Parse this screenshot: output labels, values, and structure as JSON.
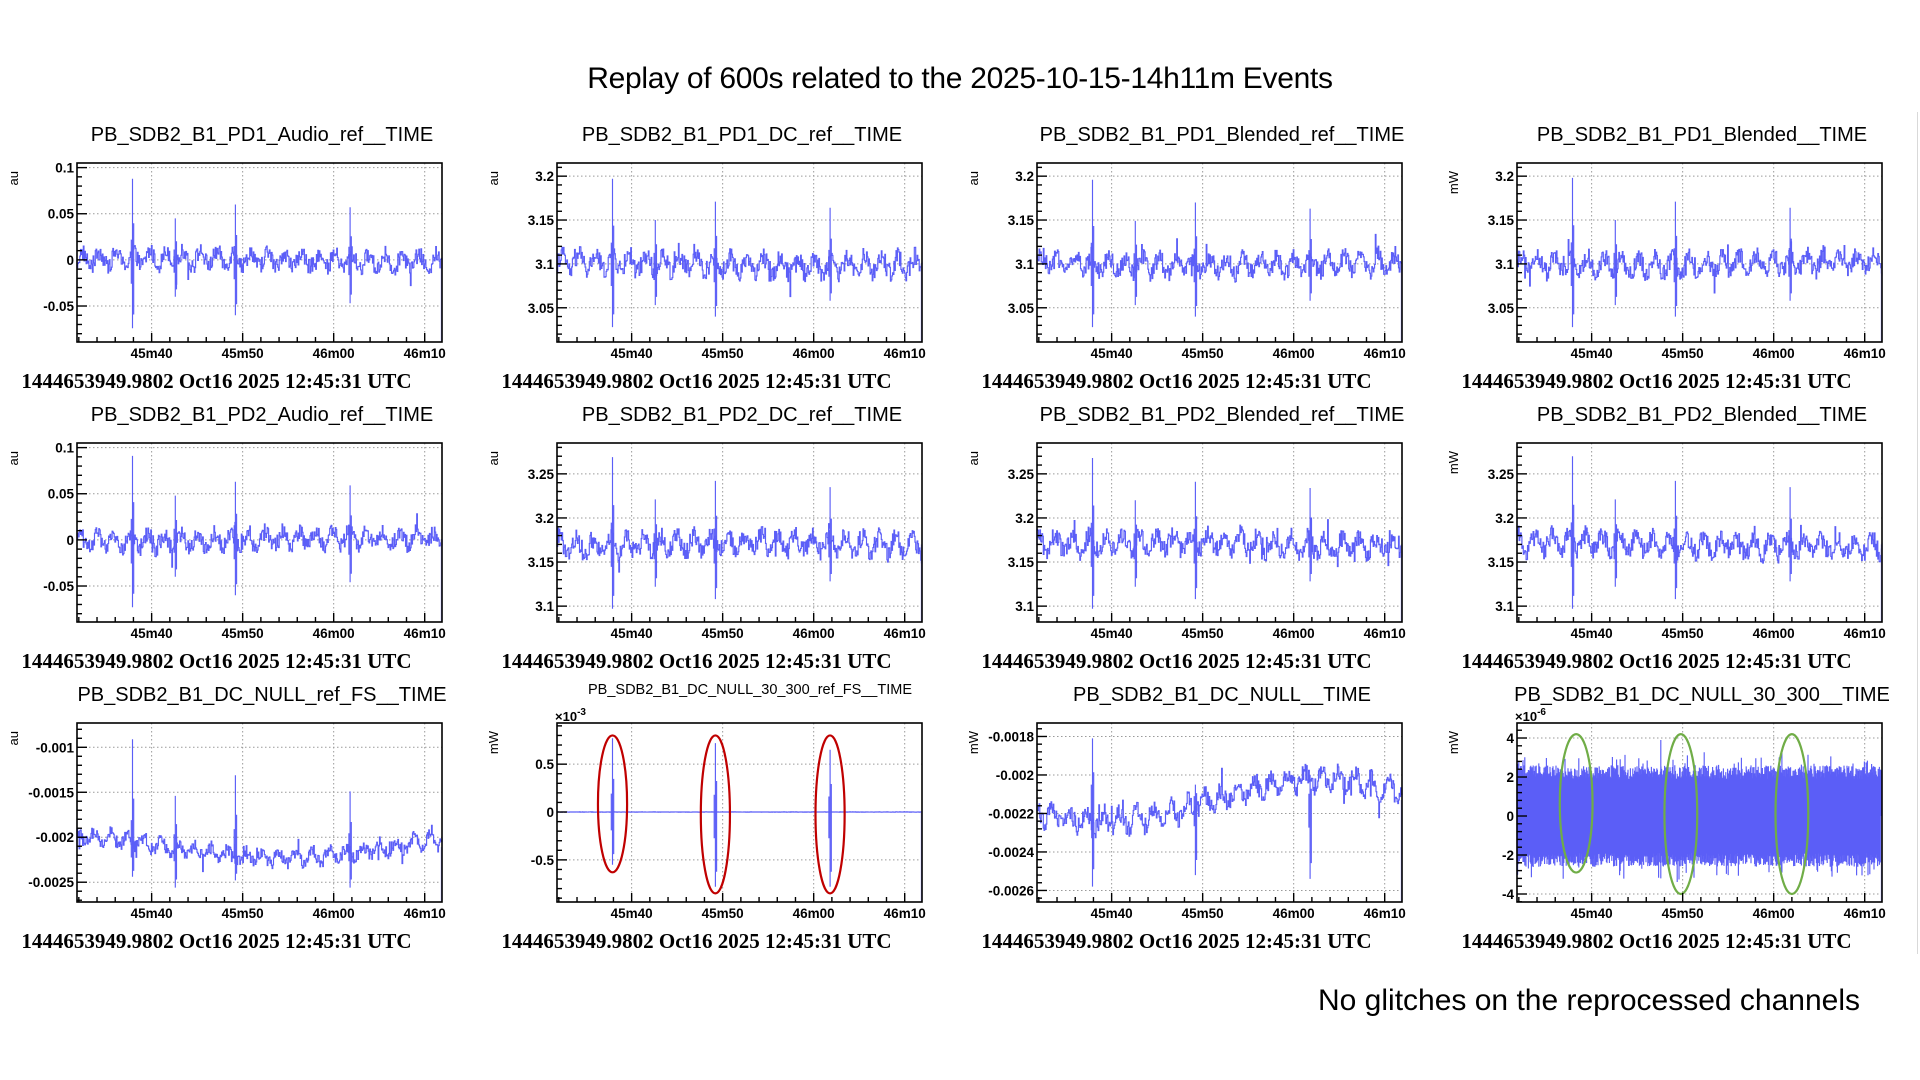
{
  "header": {
    "title": "Replay of 600s related to the 2025-10-15-14h11m Events"
  },
  "footer": {
    "note": "No glitches on the reprocessed channels"
  },
  "colors": {
    "trace": "#5b5ef7",
    "highlight_red": "#c00000",
    "highlight_green": "#70ad47",
    "frame": "#000000",
    "grid": "#9a9a9a"
  },
  "chart_data": [
    {
      "type": "line",
      "title": "PB_SDB2_B1_PD1_Audio_ref__TIME",
      "ylabel": "au",
      "xlabel": "",
      "footer": "1444653949.9802 Oct16 2025 12:45:31 UTC",
      "x_ticks": [
        "45m40",
        "45m50",
        "46m00",
        "46m10"
      ],
      "x_tick_values_s": [
        2740,
        2750,
        2760,
        2770
      ],
      "xlim_s": [
        2731.8,
        2771.9
      ],
      "y_ticks": [
        "0.1",
        "0.05",
        "0",
        "-0.05"
      ],
      "y_tick_values": [
        0.1,
        0.05,
        0,
        -0.05
      ],
      "ylim": [
        -0.089,
        0.105
      ],
      "multiplier": "",
      "grid": true,
      "series": [
        {
          "name": "signal",
          "baseline": 0,
          "noise": 0.011,
          "drift": 0.002,
          "glitches": [
            {
              "t": 2737.9,
              "max": 0.088,
              "min": -0.074
            },
            {
              "t": 2742.6,
              "max": 0.045,
              "min": -0.04
            },
            {
              "t": 2749.2,
              "max": 0.06,
              "min": -0.06
            },
            {
              "t": 2761.8,
              "max": 0.057,
              "min": -0.047
            }
          ]
        }
      ],
      "highlights": []
    },
    {
      "type": "line",
      "title": "PB_SDB2_B1_PD1_DC_ref__TIME",
      "ylabel": "au",
      "xlabel": "",
      "footer": "1444653949.9802 Oct16 2025 12:45:31 UTC",
      "x_ticks": [
        "45m40",
        "45m50",
        "46m00",
        "46m10"
      ],
      "x_tick_values_s": [
        2740,
        2750,
        2760,
        2770
      ],
      "xlim_s": [
        2731.8,
        2771.9
      ],
      "y_ticks": [
        "3.2",
        "3.15",
        "3.1",
        "3.05"
      ],
      "y_tick_values": [
        3.2,
        3.15,
        3.1,
        3.05
      ],
      "ylim": [
        3.011,
        3.215
      ],
      "multiplier": "",
      "grid": true,
      "series": [
        {
          "name": "signal",
          "baseline": 3.1,
          "noise": 0.013,
          "drift": 0.002,
          "glitches": [
            {
              "t": 2737.9,
              "max": 3.197,
              "min": 3.028
            },
            {
              "t": 2742.6,
              "max": 3.15,
              "min": 3.053
            },
            {
              "t": 2749.2,
              "max": 3.171,
              "min": 3.04
            },
            {
              "t": 2761.8,
              "max": 3.164,
              "min": 3.058
            }
          ]
        }
      ],
      "highlights": []
    },
    {
      "type": "line",
      "title": "PB_SDB2_B1_PD1_Blended_ref__TIME",
      "ylabel": "au",
      "xlabel": "",
      "footer": "1444653949.9802 Oct16 2025 12:45:31 UTC",
      "x_ticks": [
        "45m40",
        "45m50",
        "46m00",
        "46m10"
      ],
      "x_tick_values_s": [
        2740,
        2750,
        2760,
        2770
      ],
      "xlim_s": [
        2731.8,
        2771.9
      ],
      "y_ticks": [
        "3.2",
        "3.15",
        "3.1",
        "3.05"
      ],
      "y_tick_values": [
        3.2,
        3.15,
        3.1,
        3.05
      ],
      "ylim": [
        3.011,
        3.215
      ],
      "multiplier": "",
      "grid": true,
      "series": [
        {
          "name": "signal",
          "baseline": 3.1,
          "noise": 0.013,
          "drift": 0.002,
          "glitches": [
            {
              "t": 2737.9,
              "max": 3.196,
              "min": 3.028
            },
            {
              "t": 2742.6,
              "max": 3.149,
              "min": 3.053
            },
            {
              "t": 2749.2,
              "max": 3.17,
              "min": 3.04
            },
            {
              "t": 2761.8,
              "max": 3.163,
              "min": 3.058
            }
          ]
        }
      ],
      "highlights": []
    },
    {
      "type": "line",
      "title": "PB_SDB2_B1_PD1_Blended__TIME",
      "ylabel": "mW",
      "xlabel": "",
      "footer": "1444653949.9802 Oct16 2025 12:45:31 UTC",
      "x_ticks": [
        "45m40",
        "45m50",
        "46m00",
        "46m10"
      ],
      "x_tick_values_s": [
        2740,
        2750,
        2760,
        2770
      ],
      "xlim_s": [
        2731.8,
        2771.9
      ],
      "y_ticks": [
        "3.2",
        "3.15",
        "3.1",
        "3.05"
      ],
      "y_tick_values": [
        3.2,
        3.15,
        3.1,
        3.05
      ],
      "ylim": [
        3.011,
        3.215
      ],
      "multiplier": "",
      "grid": true,
      "series": [
        {
          "name": "signal",
          "baseline": 3.1,
          "noise": 0.013,
          "drift": 0.002,
          "glitches": [
            {
              "t": 2737.9,
              "max": 3.198,
              "min": 3.028
            },
            {
              "t": 2742.6,
              "max": 3.15,
              "min": 3.053
            },
            {
              "t": 2749.2,
              "max": 3.171,
              "min": 3.04
            },
            {
              "t": 2761.8,
              "max": 3.164,
              "min": 3.058
            }
          ]
        }
      ],
      "highlights": []
    },
    {
      "type": "line",
      "title": "PB_SDB2_B1_PD2_Audio_ref__TIME",
      "ylabel": "au",
      "xlabel": "",
      "footer": "1444653949.9802 Oct16 2025 12:45:31 UTC",
      "x_ticks": [
        "45m40",
        "45m50",
        "46m00",
        "46m10"
      ],
      "x_tick_values_s": [
        2740,
        2750,
        2760,
        2770
      ],
      "xlim_s": [
        2731.8,
        2771.9
      ],
      "y_ticks": [
        "0.1",
        "0.05",
        "0",
        "-0.05"
      ],
      "y_tick_values": [
        0.1,
        0.05,
        0,
        -0.05
      ],
      "ylim": [
        -0.089,
        0.105
      ],
      "multiplier": "",
      "grid": true,
      "series": [
        {
          "name": "signal",
          "baseline": 0,
          "noise": 0.011,
          "drift": 0.002,
          "glitches": [
            {
              "t": 2737.9,
              "max": 0.091,
              "min": -0.073
            },
            {
              "t": 2742.6,
              "max": 0.048,
              "min": -0.04
            },
            {
              "t": 2749.2,
              "max": 0.063,
              "min": -0.06
            },
            {
              "t": 2761.8,
              "max": 0.059,
              "min": -0.046
            }
          ]
        }
      ],
      "highlights": []
    },
    {
      "type": "line",
      "title": "PB_SDB2_B1_PD2_DC_ref__TIME",
      "ylabel": "au",
      "xlabel": "",
      "footer": "1444653949.9802 Oct16 2025 12:45:31 UTC",
      "x_ticks": [
        "45m40",
        "45m50",
        "46m00",
        "46m10"
      ],
      "x_tick_values_s": [
        2740,
        2750,
        2760,
        2770
      ],
      "xlim_s": [
        2731.8,
        2771.9
      ],
      "y_ticks": [
        "3.25",
        "3.2",
        "3.15",
        "3.1"
      ],
      "y_tick_values": [
        3.25,
        3.2,
        3.15,
        3.1
      ],
      "ylim": [
        3.082,
        3.285
      ],
      "multiplier": "",
      "grid": true,
      "series": [
        {
          "name": "signal",
          "baseline": 3.17,
          "noise": 0.013,
          "drift": 0.002,
          "glitches": [
            {
              "t": 2737.9,
              "max": 3.269,
              "min": 3.097
            },
            {
              "t": 2742.6,
              "max": 3.221,
              "min": 3.122
            },
            {
              "t": 2749.2,
              "max": 3.242,
              "min": 3.108
            },
            {
              "t": 2761.8,
              "max": 3.235,
              "min": 3.128
            }
          ]
        }
      ],
      "highlights": []
    },
    {
      "type": "line",
      "title": "PB_SDB2_B1_PD2_Blended_ref__TIME",
      "ylabel": "au",
      "xlabel": "",
      "footer": "1444653949.9802 Oct16 2025 12:45:31 UTC",
      "x_ticks": [
        "45m40",
        "45m50",
        "46m00",
        "46m10"
      ],
      "x_tick_values_s": [
        2740,
        2750,
        2760,
        2770
      ],
      "xlim_s": [
        2731.8,
        2771.9
      ],
      "y_ticks": [
        "3.25",
        "3.2",
        "3.15",
        "3.1"
      ],
      "y_tick_values": [
        3.25,
        3.2,
        3.15,
        3.1
      ],
      "ylim": [
        3.082,
        3.285
      ],
      "multiplier": "",
      "grid": true,
      "series": [
        {
          "name": "signal",
          "baseline": 3.17,
          "noise": 0.013,
          "drift": 0.002,
          "glitches": [
            {
              "t": 2737.9,
              "max": 3.268,
              "min": 3.097
            },
            {
              "t": 2742.6,
              "max": 3.22,
              "min": 3.122
            },
            {
              "t": 2749.2,
              "max": 3.241,
              "min": 3.108
            },
            {
              "t": 2761.8,
              "max": 3.234,
              "min": 3.128
            }
          ]
        }
      ],
      "highlights": []
    },
    {
      "type": "line",
      "title": "PB_SDB2_B1_PD2_Blended__TIME",
      "ylabel": "mW",
      "xlabel": "",
      "footer": "1444653949.9802 Oct16 2025 12:45:31 UTC",
      "x_ticks": [
        "45m40",
        "45m50",
        "46m00",
        "46m10"
      ],
      "x_tick_values_s": [
        2740,
        2750,
        2760,
        2770
      ],
      "xlim_s": [
        2731.8,
        2771.9
      ],
      "y_ticks": [
        "3.25",
        "3.2",
        "3.15",
        "3.1"
      ],
      "y_tick_values": [
        3.25,
        3.2,
        3.15,
        3.1
      ],
      "ylim": [
        3.082,
        3.285
      ],
      "multiplier": "",
      "grid": true,
      "series": [
        {
          "name": "signal",
          "baseline": 3.17,
          "noise": 0.013,
          "drift": 0.002,
          "glitches": [
            {
              "t": 2737.9,
              "max": 3.27,
              "min": 3.097
            },
            {
              "t": 2742.6,
              "max": 3.221,
              "min": 3.122
            },
            {
              "t": 2749.2,
              "max": 3.242,
              "min": 3.108
            },
            {
              "t": 2761.8,
              "max": 3.235,
              "min": 3.128
            }
          ]
        }
      ],
      "highlights": []
    },
    {
      "type": "line",
      "title": "PB_SDB2_B1_DC_NULL_ref_FS__TIME",
      "ylabel": "au",
      "xlabel": "",
      "footer": "1444653949.9802 Oct16 2025 12:45:31 UTC",
      "x_ticks": [
        "45m40",
        "45m50",
        "46m00",
        "46m10"
      ],
      "x_tick_values_s": [
        2740,
        2750,
        2760,
        2770
      ],
      "xlim_s": [
        2731.8,
        2771.9
      ],
      "y_ticks": [
        "-0.001",
        "-0.0015",
        "-0.002",
        "-0.0025"
      ],
      "y_tick_values": [
        -0.001,
        -0.0015,
        -0.002,
        -0.0025
      ],
      "ylim": [
        -0.00272,
        -0.00073
      ],
      "multiplier": "",
      "grid": true,
      "series": [
        {
          "name": "signal",
          "baseline": -0.00211,
          "noise": 9e-05,
          "drift": 0.00012,
          "glitches": [
            {
              "t": 2737.9,
              "max": -0.00091,
              "min": -0.00244
            },
            {
              "t": 2742.6,
              "max": -0.00154,
              "min": -0.00256
            },
            {
              "t": 2749.2,
              "max": -0.00131,
              "min": -0.00248
            },
            {
              "t": 2761.8,
              "max": -0.00149,
              "min": -0.00256
            }
          ]
        }
      ],
      "highlights": []
    },
    {
      "type": "line",
      "title": "PB_SDB2_B1_DC_NULL_30_300_ref_FS__TIME",
      "ylabel": "mW",
      "xlabel": "",
      "footer": "1444653949.9802 Oct16 2025 12:45:31 UTC",
      "x_ticks": [
        "45m40",
        "45m50",
        "46m00",
        "46m10"
      ],
      "x_tick_values_s": [
        2740,
        2750,
        2760,
        2770
      ],
      "xlim_s": [
        2731.8,
        2771.9
      ],
      "y_ticks": [
        "0.5",
        "0",
        "-0.5"
      ],
      "y_tick_values": [
        0.5,
        0,
        -0.5
      ],
      "ylim": [
        -0.94,
        0.93
      ],
      "multiplier": "×10",
      "multiplier_exp": "-3",
      "grid": true,
      "series": [
        {
          "name": "signal",
          "baseline": 0,
          "noise": 0.004,
          "drift": 0,
          "glitches": [
            {
              "t": 2737.9,
              "max": 0.77,
              "min": -0.55
            },
            {
              "t": 2749.2,
              "max": 0.72,
              "min": -0.78
            },
            {
              "t": 2761.8,
              "max": 0.65,
              "min": -0.78
            }
          ]
        }
      ],
      "highlights": [
        {
          "t": 2737.9,
          "half_width_s": 1.6,
          "ymax": 0.8,
          "ymin": -0.63,
          "color": "#c00000"
        },
        {
          "t": 2749.2,
          "half_width_s": 1.6,
          "ymax": 0.8,
          "ymin": -0.85,
          "color": "#c00000"
        },
        {
          "t": 2761.8,
          "half_width_s": 1.6,
          "ymax": 0.8,
          "ymin": -0.85,
          "color": "#c00000"
        }
      ]
    },
    {
      "type": "line",
      "title": "PB_SDB2_B1_DC_NULL__TIME",
      "ylabel": "mW",
      "xlabel": "",
      "footer": "1444653949.9802 Oct16 2025 12:45:31 UTC",
      "x_ticks": [
        "45m40",
        "45m50",
        "46m00",
        "46m10"
      ],
      "x_tick_values_s": [
        2740,
        2750,
        2760,
        2770
      ],
      "xlim_s": [
        2731.8,
        2771.9
      ],
      "y_ticks": [
        "-0.0018",
        "-0.002",
        "-0.0022",
        "-0.0024",
        "-0.0026"
      ],
      "y_tick_values": [
        -0.0018,
        -0.002,
        -0.0022,
        -0.0024,
        -0.0026
      ],
      "ylim": [
        -0.00266,
        -0.00173
      ],
      "multiplier": "",
      "grid": true,
      "series": [
        {
          "name": "signal",
          "baseline": -0.00213,
          "noise": 6e-05,
          "drift": 0.00011,
          "glitches": [
            {
              "t": 2737.9,
              "max": -0.00181,
              "min": -0.00258
            },
            {
              "t": 2749.2,
              "max": -0.00205,
              "min": -0.00252
            },
            {
              "t": 2761.8,
              "max": -0.002,
              "min": -0.00254
            }
          ]
        }
      ],
      "highlights": []
    },
    {
      "type": "line",
      "title": "PB_SDB2_B1_DC_NULL_30_300__TIME",
      "ylabel": "mW",
      "xlabel": "",
      "footer": "1444653949.9802 Oct16 2025 12:45:31 UTC",
      "x_ticks": [
        "45m40",
        "45m50",
        "46m00",
        "46m10"
      ],
      "x_tick_values_s": [
        2740,
        2750,
        2760,
        2770
      ],
      "xlim_s": [
        2731.8,
        2771.9
      ],
      "y_ticks": [
        "4",
        "2",
        "0",
        "-2",
        "-4"
      ],
      "y_tick_values": [
        4,
        2,
        0,
        -2,
        -4
      ],
      "ylim": [
        -4.41,
        4.77
      ],
      "multiplier": "×10",
      "multiplier_exp": "-6",
      "grid": true,
      "series": [
        {
          "name": "signal",
          "baseline": 0,
          "noise": 2.0,
          "drift": 0,
          "dense": true,
          "glitches": []
        }
      ],
      "highlights": [
        {
          "t": 2738.3,
          "half_width_s": 1.8,
          "ymax": 4.2,
          "ymin": -2.9,
          "color": "#70ad47"
        },
        {
          "t": 2749.8,
          "half_width_s": 1.8,
          "ymax": 4.2,
          "ymin": -4.0,
          "color": "#70ad47"
        },
        {
          "t": 2762.0,
          "half_width_s": 1.8,
          "ymax": 4.2,
          "ymin": -4.0,
          "color": "#70ad47"
        }
      ]
    }
  ]
}
